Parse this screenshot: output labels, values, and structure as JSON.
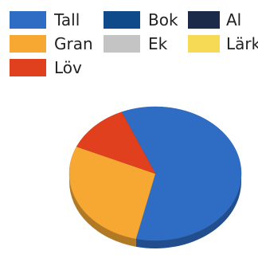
{
  "chart_data": {
    "type": "pie",
    "title": "",
    "legend": [
      {
        "name": "Tall",
        "color": "#2f6dc4"
      },
      {
        "name": "Bok",
        "color": "#114a8b"
      },
      {
        "name": "Al",
        "color": "#1c2a4a"
      },
      {
        "name": "Gran",
        "color": "#f7a833"
      },
      {
        "name": "Ek",
        "color": "#c4c4c4"
      },
      {
        "name": "Lärk",
        "color": "#f6d954"
      },
      {
        "name": "Löv",
        "color": "#e0401d"
      }
    ],
    "slices": [
      {
        "name": "Tall",
        "value": 60
      },
      {
        "name": "Gran",
        "value": 28
      },
      {
        "name": "Löv",
        "value": 12
      }
    ],
    "legend_position": "top",
    "view": "3d-tilted"
  }
}
